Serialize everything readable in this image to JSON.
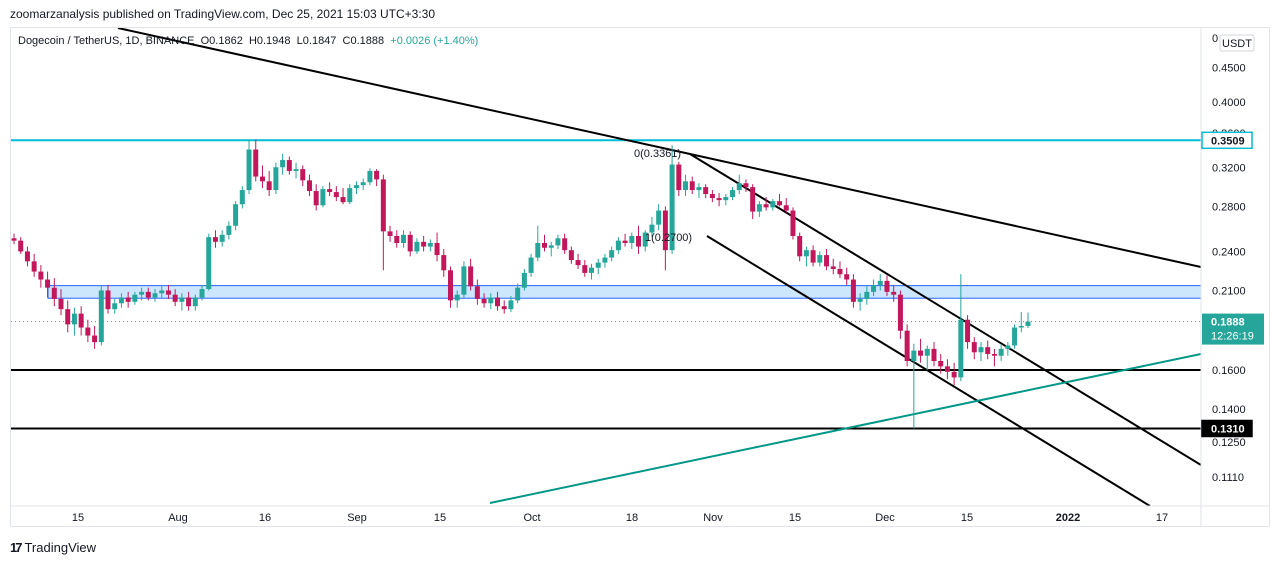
{
  "header": {
    "published_line": "zoomarzanalysis published on TradingView.com, Dec 25, 2021 15:03 UTC+3:30"
  },
  "legend": {
    "symbol": "Dogecoin / TetherUS, 1D, BINANCE",
    "open": "O0.1862",
    "high": "H0.1948",
    "low": "L0.1847",
    "close": "C0.1888",
    "change": "+0.0026 (+1.40%)"
  },
  "footer": {
    "logo": "17",
    "brand": "TradingView"
  },
  "colors": {
    "up": "#26a69a",
    "down": "#ef5350",
    "candle_down": "#c2185b",
    "horizontal_cyan": "#00bcd4",
    "zone_fill": "#bbdefb",
    "zone_border": "#2962ff",
    "trend_teal": "#009688",
    "price_badge": "#26a69a"
  },
  "chart_data": {
    "type": "candlestick",
    "currency_button": "USDT",
    "price_scale_top_label": "0",
    "y_ticks": [
      "0.4500",
      "0.4000",
      "0.3600",
      "0.3200",
      "0.2800",
      "0.2400",
      "0.2100",
      "0.1600",
      "0.1400",
      "0.1250",
      "0.1110"
    ],
    "x_ticks": [
      "15",
      "Aug",
      "16",
      "Sep",
      "15",
      "Oct",
      "18",
      "Nov",
      "15",
      "Dec",
      "15",
      "2022",
      "17"
    ],
    "last_price": "0.1888",
    "countdown": "12:26:19",
    "horizontal_levels": [
      {
        "value": 0.3509,
        "label": "0.3509",
        "style": "cyan"
      },
      {
        "value": 0.16,
        "style": "black"
      },
      {
        "value": 0.131,
        "label": "0.1310",
        "style": "black"
      }
    ],
    "zone": {
      "from": 0.2045,
      "to": 0.2135
    },
    "annotations": [
      "0(0.3361)",
      "1(0.2700)"
    ],
    "candles": [
      [
        0.251,
        0.255,
        0.246,
        0.249
      ],
      [
        0.249,
        0.252,
        0.238,
        0.24
      ],
      [
        0.24,
        0.244,
        0.228,
        0.232
      ],
      [
        0.232,
        0.238,
        0.22,
        0.224
      ],
      [
        0.224,
        0.229,
        0.212,
        0.218
      ],
      [
        0.218,
        0.224,
        0.205,
        0.212
      ],
      [
        0.212,
        0.219,
        0.199,
        0.204
      ],
      [
        0.204,
        0.211,
        0.193,
        0.197
      ],
      [
        0.197,
        0.203,
        0.182,
        0.187
      ],
      [
        0.187,
        0.198,
        0.18,
        0.194
      ],
      [
        0.194,
        0.199,
        0.18,
        0.185
      ],
      [
        0.185,
        0.19,
        0.176,
        0.18
      ],
      [
        0.18,
        0.186,
        0.172,
        0.176
      ],
      [
        0.176,
        0.214,
        0.174,
        0.21
      ],
      [
        0.21,
        0.214,
        0.194,
        0.197
      ],
      [
        0.197,
        0.204,
        0.194,
        0.201
      ],
      [
        0.201,
        0.208,
        0.198,
        0.205
      ],
      [
        0.205,
        0.209,
        0.198,
        0.202
      ],
      [
        0.202,
        0.209,
        0.2,
        0.207
      ],
      [
        0.207,
        0.212,
        0.203,
        0.209
      ],
      [
        0.209,
        0.212,
        0.203,
        0.205
      ],
      [
        0.205,
        0.211,
        0.202,
        0.208
      ],
      [
        0.208,
        0.213,
        0.205,
        0.21
      ],
      [
        0.21,
        0.214,
        0.204,
        0.207
      ],
      [
        0.207,
        0.211,
        0.199,
        0.202
      ],
      [
        0.202,
        0.208,
        0.196,
        0.205
      ],
      [
        0.205,
        0.209,
        0.196,
        0.199
      ],
      [
        0.199,
        0.207,
        0.196,
        0.205
      ],
      [
        0.205,
        0.214,
        0.203,
        0.211
      ],
      [
        0.211,
        0.255,
        0.21,
        0.252
      ],
      [
        0.252,
        0.258,
        0.243,
        0.248
      ],
      [
        0.248,
        0.258,
        0.244,
        0.254
      ],
      [
        0.254,
        0.266,
        0.25,
        0.262
      ],
      [
        0.262,
        0.285,
        0.258,
        0.282
      ],
      [
        0.282,
        0.3,
        0.278,
        0.296
      ],
      [
        0.296,
        0.352,
        0.292,
        0.34
      ],
      [
        0.34,
        0.352,
        0.305,
        0.31
      ],
      [
        0.31,
        0.322,
        0.298,
        0.305
      ],
      [
        0.305,
        0.316,
        0.29,
        0.296
      ],
      [
        0.296,
        0.325,
        0.292,
        0.32
      ],
      [
        0.32,
        0.335,
        0.312,
        0.328
      ],
      [
        0.328,
        0.332,
        0.312,
        0.316
      ],
      [
        0.316,
        0.325,
        0.308,
        0.318
      ],
      [
        0.318,
        0.322,
        0.3,
        0.306
      ],
      [
        0.306,
        0.312,
        0.29,
        0.295
      ],
      [
        0.295,
        0.302,
        0.276,
        0.281
      ],
      [
        0.281,
        0.3,
        0.279,
        0.297
      ],
      [
        0.297,
        0.304,
        0.29,
        0.294
      ],
      [
        0.294,
        0.3,
        0.285,
        0.289
      ],
      [
        0.289,
        0.298,
        0.282,
        0.284
      ],
      [
        0.284,
        0.302,
        0.282,
        0.298
      ],
      [
        0.298,
        0.305,
        0.292,
        0.301
      ],
      [
        0.301,
        0.308,
        0.296,
        0.304
      ],
      [
        0.304,
        0.319,
        0.301,
        0.316
      ],
      [
        0.316,
        0.318,
        0.3,
        0.307
      ],
      [
        0.307,
        0.312,
        0.225,
        0.257
      ],
      [
        0.257,
        0.262,
        0.248,
        0.253
      ],
      [
        0.253,
        0.258,
        0.243,
        0.247
      ],
      [
        0.247,
        0.258,
        0.243,
        0.254
      ],
      [
        0.254,
        0.257,
        0.236,
        0.24
      ],
      [
        0.24,
        0.251,
        0.238,
        0.248
      ],
      [
        0.248,
        0.253,
        0.24,
        0.244
      ],
      [
        0.244,
        0.25,
        0.24,
        0.247
      ],
      [
        0.247,
        0.256,
        0.232,
        0.237
      ],
      [
        0.237,
        0.242,
        0.22,
        0.225
      ],
      [
        0.225,
        0.228,
        0.198,
        0.203
      ],
      [
        0.203,
        0.21,
        0.198,
        0.207
      ],
      [
        0.207,
        0.232,
        0.205,
        0.228
      ],
      [
        0.228,
        0.234,
        0.21,
        0.213
      ],
      [
        0.213,
        0.218,
        0.2,
        0.204
      ],
      [
        0.204,
        0.208,
        0.198,
        0.201
      ],
      [
        0.201,
        0.208,
        0.197,
        0.205
      ],
      [
        0.205,
        0.209,
        0.196,
        0.199
      ],
      [
        0.199,
        0.203,
        0.194,
        0.197
      ],
      [
        0.197,
        0.206,
        0.195,
        0.203
      ],
      [
        0.203,
        0.215,
        0.201,
        0.212
      ],
      [
        0.212,
        0.226,
        0.21,
        0.223
      ],
      [
        0.223,
        0.238,
        0.22,
        0.235
      ],
      [
        0.235,
        0.262,
        0.232,
        0.247
      ],
      [
        0.247,
        0.254,
        0.24,
        0.243
      ],
      [
        0.243,
        0.248,
        0.236,
        0.245
      ],
      [
        0.245,
        0.254,
        0.242,
        0.251
      ],
      [
        0.251,
        0.255,
        0.238,
        0.241
      ],
      [
        0.241,
        0.244,
        0.23,
        0.233
      ],
      [
        0.233,
        0.238,
        0.226,
        0.229
      ],
      [
        0.229,
        0.233,
        0.22,
        0.223
      ],
      [
        0.223,
        0.23,
        0.218,
        0.227
      ],
      [
        0.227,
        0.234,
        0.222,
        0.231
      ],
      [
        0.231,
        0.238,
        0.227,
        0.235
      ],
      [
        0.235,
        0.244,
        0.232,
        0.241
      ],
      [
        0.241,
        0.252,
        0.238,
        0.249
      ],
      [
        0.249,
        0.255,
        0.244,
        0.247
      ],
      [
        0.247,
        0.256,
        0.242,
        0.253
      ],
      [
        0.253,
        0.262,
        0.238,
        0.244
      ],
      [
        0.244,
        0.258,
        0.24,
        0.256
      ],
      [
        0.256,
        0.27,
        0.252,
        0.263
      ],
      [
        0.263,
        0.282,
        0.258,
        0.276
      ],
      [
        0.276,
        0.28,
        0.225,
        0.241
      ],
      [
        0.241,
        0.345,
        0.238,
        0.323
      ],
      [
        0.323,
        0.326,
        0.29,
        0.296
      ],
      [
        0.296,
        0.312,
        0.29,
        0.305
      ],
      [
        0.305,
        0.31,
        0.292,
        0.296
      ],
      [
        0.296,
        0.303,
        0.288,
        0.299
      ],
      [
        0.299,
        0.302,
        0.288,
        0.292
      ],
      [
        0.292,
        0.296,
        0.284,
        0.288
      ],
      [
        0.288,
        0.293,
        0.28,
        0.286
      ],
      [
        0.286,
        0.292,
        0.281,
        0.289
      ],
      [
        0.289,
        0.299,
        0.286,
        0.296
      ],
      [
        0.296,
        0.312,
        0.292,
        0.303
      ],
      [
        0.303,
        0.307,
        0.294,
        0.299
      ],
      [
        0.299,
        0.302,
        0.268,
        0.275
      ],
      [
        0.275,
        0.285,
        0.27,
        0.282
      ],
      [
        0.282,
        0.289,
        0.276,
        0.279
      ],
      [
        0.279,
        0.287,
        0.276,
        0.285
      ],
      [
        0.285,
        0.292,
        0.28,
        0.281
      ],
      [
        0.281,
        0.288,
        0.274,
        0.276
      ],
      [
        0.276,
        0.279,
        0.25,
        0.253
      ],
      [
        0.253,
        0.256,
        0.232,
        0.236
      ],
      [
        0.236,
        0.244,
        0.228,
        0.241
      ],
      [
        0.241,
        0.245,
        0.228,
        0.231
      ],
      [
        0.231,
        0.24,
        0.228,
        0.237
      ],
      [
        0.237,
        0.242,
        0.225,
        0.228
      ],
      [
        0.228,
        0.234,
        0.222,
        0.226
      ],
      [
        0.226,
        0.232,
        0.219,
        0.222
      ],
      [
        0.222,
        0.227,
        0.214,
        0.218
      ],
      [
        0.218,
        0.222,
        0.198,
        0.202
      ],
      [
        0.202,
        0.208,
        0.196,
        0.204
      ],
      [
        0.204,
        0.213,
        0.2,
        0.209
      ],
      [
        0.209,
        0.218,
        0.206,
        0.214
      ],
      [
        0.214,
        0.222,
        0.21,
        0.217
      ],
      [
        0.217,
        0.221,
        0.206,
        0.209
      ],
      [
        0.209,
        0.214,
        0.202,
        0.207
      ],
      [
        0.207,
        0.21,
        0.178,
        0.183
      ],
      [
        0.183,
        0.187,
        0.162,
        0.165
      ],
      [
        0.165,
        0.175,
        0.131,
        0.171
      ],
      [
        0.171,
        0.178,
        0.164,
        0.168
      ],
      [
        0.168,
        0.174,
        0.16,
        0.172
      ],
      [
        0.172,
        0.176,
        0.162,
        0.165
      ],
      [
        0.165,
        0.169,
        0.158,
        0.162
      ],
      [
        0.162,
        0.166,
        0.155,
        0.159
      ],
      [
        0.159,
        0.164,
        0.152,
        0.156
      ],
      [
        0.156,
        0.222,
        0.154,
        0.19
      ],
      [
        0.19,
        0.193,
        0.172,
        0.176
      ],
      [
        0.176,
        0.179,
        0.166,
        0.17
      ],
      [
        0.17,
        0.176,
        0.165,
        0.173
      ],
      [
        0.173,
        0.177,
        0.166,
        0.169
      ],
      [
        0.169,
        0.172,
        0.162,
        0.168
      ],
      [
        0.168,
        0.175,
        0.165,
        0.172
      ],
      [
        0.172,
        0.176,
        0.168,
        0.174
      ],
      [
        0.174,
        0.187,
        0.172,
        0.185
      ],
      [
        0.185,
        0.195,
        0.182,
        0.186
      ],
      [
        0.186,
        0.1948,
        0.1847,
        0.1888
      ]
    ]
  }
}
